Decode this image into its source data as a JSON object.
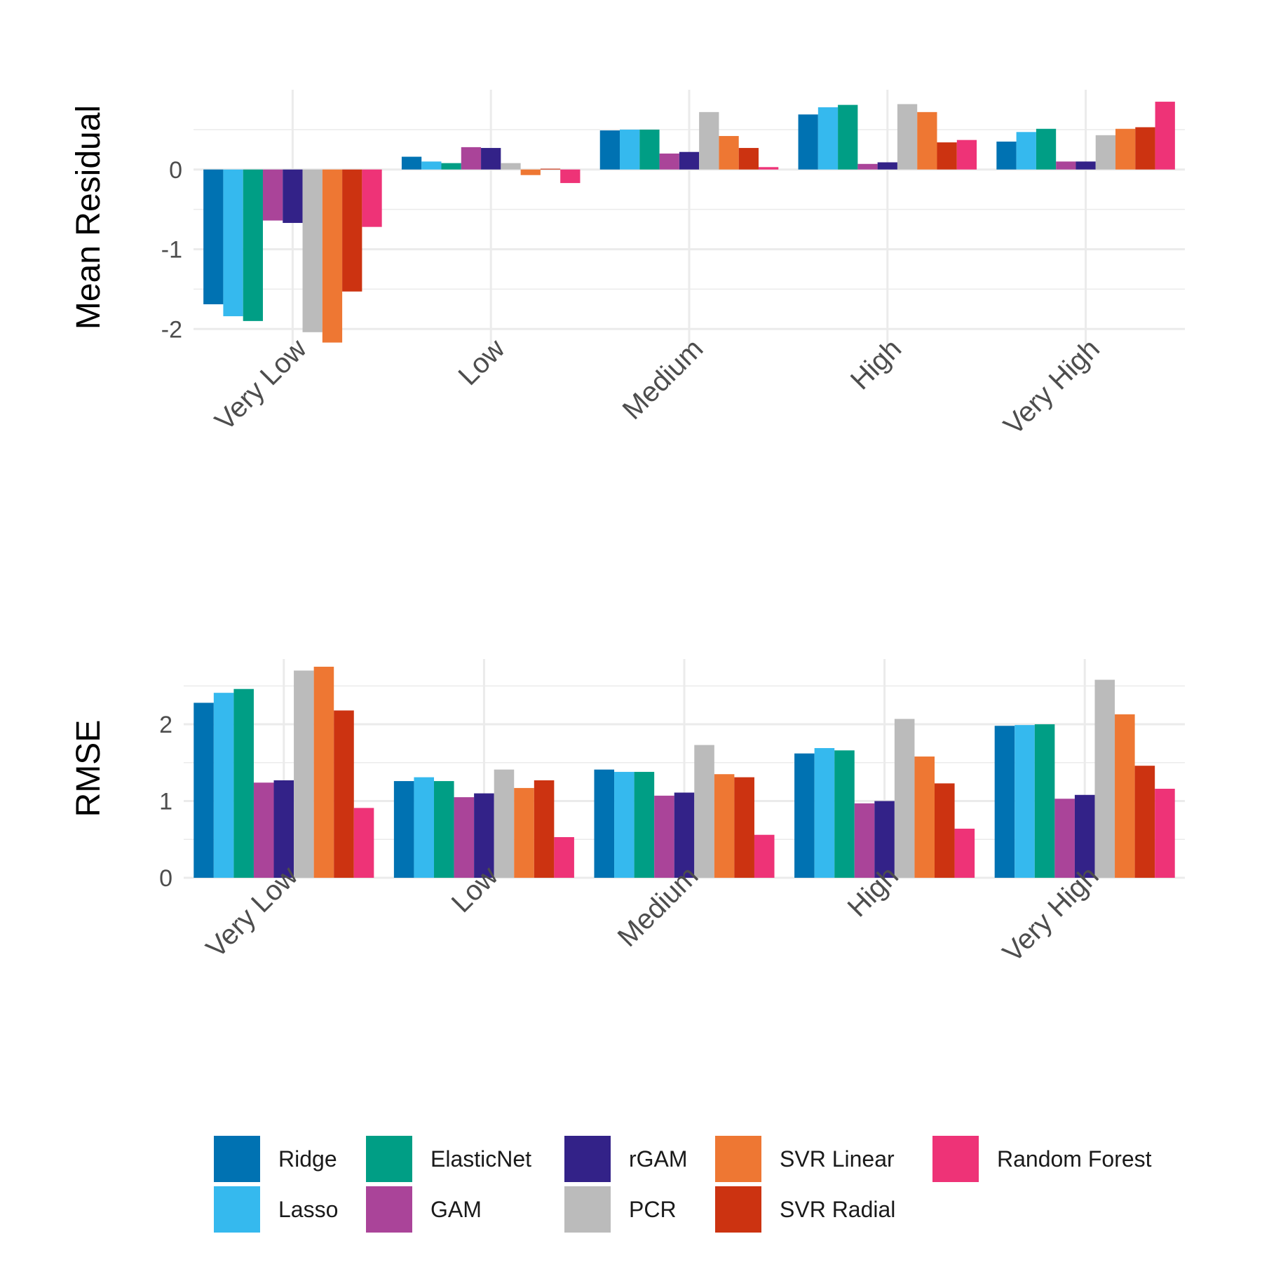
{
  "categories": [
    "Very Low",
    "Low",
    "Medium",
    "High",
    "Very High"
  ],
  "series": [
    {
      "name": "Ridge",
      "color": "#0072B2",
      "residual": [
        -1.69,
        0.16,
        0.49,
        0.69,
        0.35
      ],
      "rmse": [
        2.28,
        1.26,
        1.41,
        1.62,
        1.98
      ]
    },
    {
      "name": "Lasso",
      "color": "#35B9EE",
      "residual": [
        -1.84,
        0.1,
        0.5,
        0.78,
        0.47
      ],
      "rmse": [
        2.41,
        1.31,
        1.38,
        1.69,
        1.99
      ]
    },
    {
      "name": "ElasticNet",
      "color": "#009E85",
      "residual": [
        -1.9,
        0.08,
        0.5,
        0.81,
        0.51
      ],
      "rmse": [
        2.46,
        1.26,
        1.38,
        1.66,
        2.0
      ]
    },
    {
      "name": "GAM",
      "color": "#AA4499",
      "residual": [
        -0.64,
        0.28,
        0.2,
        0.07,
        0.1
      ],
      "rmse": [
        1.24,
        1.05,
        1.07,
        0.97,
        1.03
      ]
    },
    {
      "name": "rGAM",
      "color": "#332288",
      "residual": [
        -0.67,
        0.27,
        0.22,
        0.09,
        0.1
      ],
      "rmse": [
        1.27,
        1.1,
        1.11,
        1.0,
        1.08
      ]
    },
    {
      "name": "PCR",
      "color": "#BBBBBB",
      "residual": [
        -2.04,
        0.08,
        0.72,
        0.82,
        0.43
      ],
      "rmse": [
        2.7,
        1.41,
        1.73,
        2.07,
        2.58
      ]
    },
    {
      "name": "SVR Linear",
      "color": "#EE7733",
      "residual": [
        -2.17,
        -0.07,
        0.42,
        0.72,
        0.51
      ],
      "rmse": [
        2.75,
        1.17,
        1.35,
        1.58,
        2.13
      ]
    },
    {
      "name": "SVR Radial",
      "color": "#CC3311",
      "residual": [
        -1.53,
        0.01,
        0.27,
        0.34,
        0.53
      ],
      "rmse": [
        2.18,
        1.27,
        1.31,
        1.23,
        1.46
      ]
    },
    {
      "name": "Random Forest",
      "color": "#EE3377",
      "residual": [
        -0.72,
        -0.17,
        0.03,
        0.37,
        0.85
      ],
      "rmse": [
        0.91,
        0.53,
        0.56,
        0.64,
        1.16
      ]
    }
  ],
  "chart_data": [
    {
      "type": "bar",
      "title": "",
      "xlabel": "",
      "ylabel": "Mean Residual",
      "ylim": [
        -2.2,
        1.0
      ],
      "yticks": [
        "-2",
        "-1",
        "0"
      ],
      "grid": true,
      "categories": [
        "Very Low",
        "Low",
        "Medium",
        "High",
        "Very High"
      ],
      "series": [
        {
          "name": "Ridge",
          "values": [
            -1.69,
            0.16,
            0.49,
            0.69,
            0.35
          ]
        },
        {
          "name": "Lasso",
          "values": [
            -1.84,
            0.1,
            0.5,
            0.78,
            0.47
          ]
        },
        {
          "name": "ElasticNet",
          "values": [
            -1.9,
            0.08,
            0.5,
            0.81,
            0.51
          ]
        },
        {
          "name": "GAM",
          "values": [
            -0.64,
            0.28,
            0.2,
            0.07,
            0.1
          ]
        },
        {
          "name": "rGAM",
          "values": [
            -0.67,
            0.27,
            0.22,
            0.09,
            0.1
          ]
        },
        {
          "name": "PCR",
          "values": [
            -2.04,
            0.08,
            0.72,
            0.82,
            0.43
          ]
        },
        {
          "name": "SVR Linear",
          "values": [
            -2.17,
            -0.07,
            0.42,
            0.72,
            0.51
          ]
        },
        {
          "name": "SVR Radial",
          "values": [
            -1.53,
            0.01,
            0.27,
            0.34,
            0.53
          ]
        },
        {
          "name": "Random Forest",
          "values": [
            -0.72,
            -0.17,
            0.03,
            0.37,
            0.85
          ]
        }
      ]
    },
    {
      "type": "bar",
      "title": "",
      "xlabel": "",
      "ylabel": "RMSE",
      "ylim": [
        0,
        2.85
      ],
      "yticks": [
        "0",
        "1",
        "2"
      ],
      "grid": true,
      "categories": [
        "Very Low",
        "Low",
        "Medium",
        "High",
        "Very High"
      ],
      "series": [
        {
          "name": "Ridge",
          "values": [
            2.28,
            1.26,
            1.41,
            1.62,
            1.98
          ]
        },
        {
          "name": "Lasso",
          "values": [
            2.41,
            1.31,
            1.38,
            1.69,
            1.99
          ]
        },
        {
          "name": "ElasticNet",
          "values": [
            2.46,
            1.26,
            1.38,
            1.66,
            2.0
          ]
        },
        {
          "name": "GAM",
          "values": [
            1.24,
            1.05,
            1.07,
            0.97,
            1.03
          ]
        },
        {
          "name": "rGAM",
          "values": [
            1.27,
            1.1,
            1.11,
            1.0,
            1.08
          ]
        },
        {
          "name": "PCR",
          "values": [
            2.7,
            1.41,
            1.73,
            2.07,
            2.58
          ]
        },
        {
          "name": "SVR Linear",
          "values": [
            2.75,
            1.17,
            1.35,
            1.58,
            2.13
          ]
        },
        {
          "name": "SVR Radial",
          "values": [
            2.18,
            1.27,
            1.31,
            1.23,
            1.46
          ]
        },
        {
          "name": "Random Forest",
          "values": [
            0.91,
            0.53,
            0.56,
            0.64,
            1.16
          ]
        }
      ]
    }
  ],
  "legend": {
    "position": "bottom"
  }
}
